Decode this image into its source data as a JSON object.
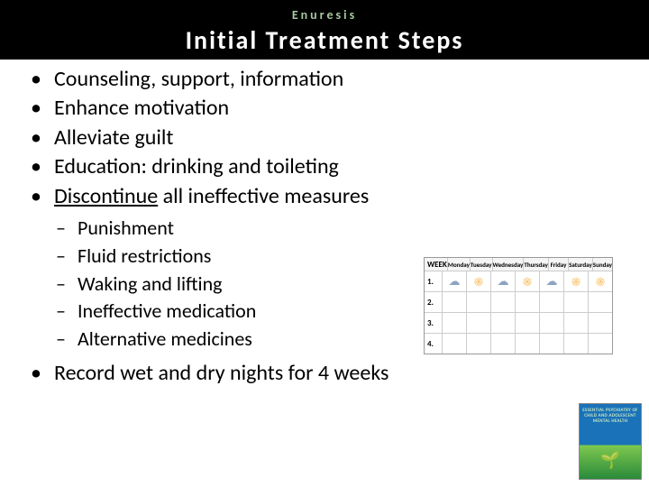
{
  "header": {
    "category": "Enuresis",
    "title": "Initial Treatment Steps"
  },
  "bullets": {
    "b0": "Counseling, support, information",
    "b1": "Enhance motivation",
    "b2": "Alleviate guilt",
    "b3": "Education: drinking and toileting",
    "b4_pre": "Discontinue",
    "b4_post": " all ineffective measures",
    "b5": "Record wet and dry nights for 4 weeks"
  },
  "sub": {
    "s0": "Punishment",
    "s1": "Fluid restrictions",
    "s2": "Waking and lifting",
    "s3": "Ineffective medication",
    "s4": "Alternative medicines"
  },
  "calendar": {
    "days": [
      "WEEK",
      "Monday",
      "Tuesday",
      "Wednesday",
      "Thursday",
      "Friday",
      "Saturday",
      "Sunday"
    ],
    "rows": [
      "1.",
      "2.",
      "3.",
      "4."
    ],
    "icons_row1": [
      "cloud",
      "sun",
      "cloud",
      "sun",
      "cloud",
      "sun",
      "sun"
    ]
  },
  "book": {
    "line1": "ESSENTIAL PSYCHIATRY OF",
    "line2": "CHILD AND ADOLESCENT",
    "line3": "MENTAL HEALTH"
  }
}
